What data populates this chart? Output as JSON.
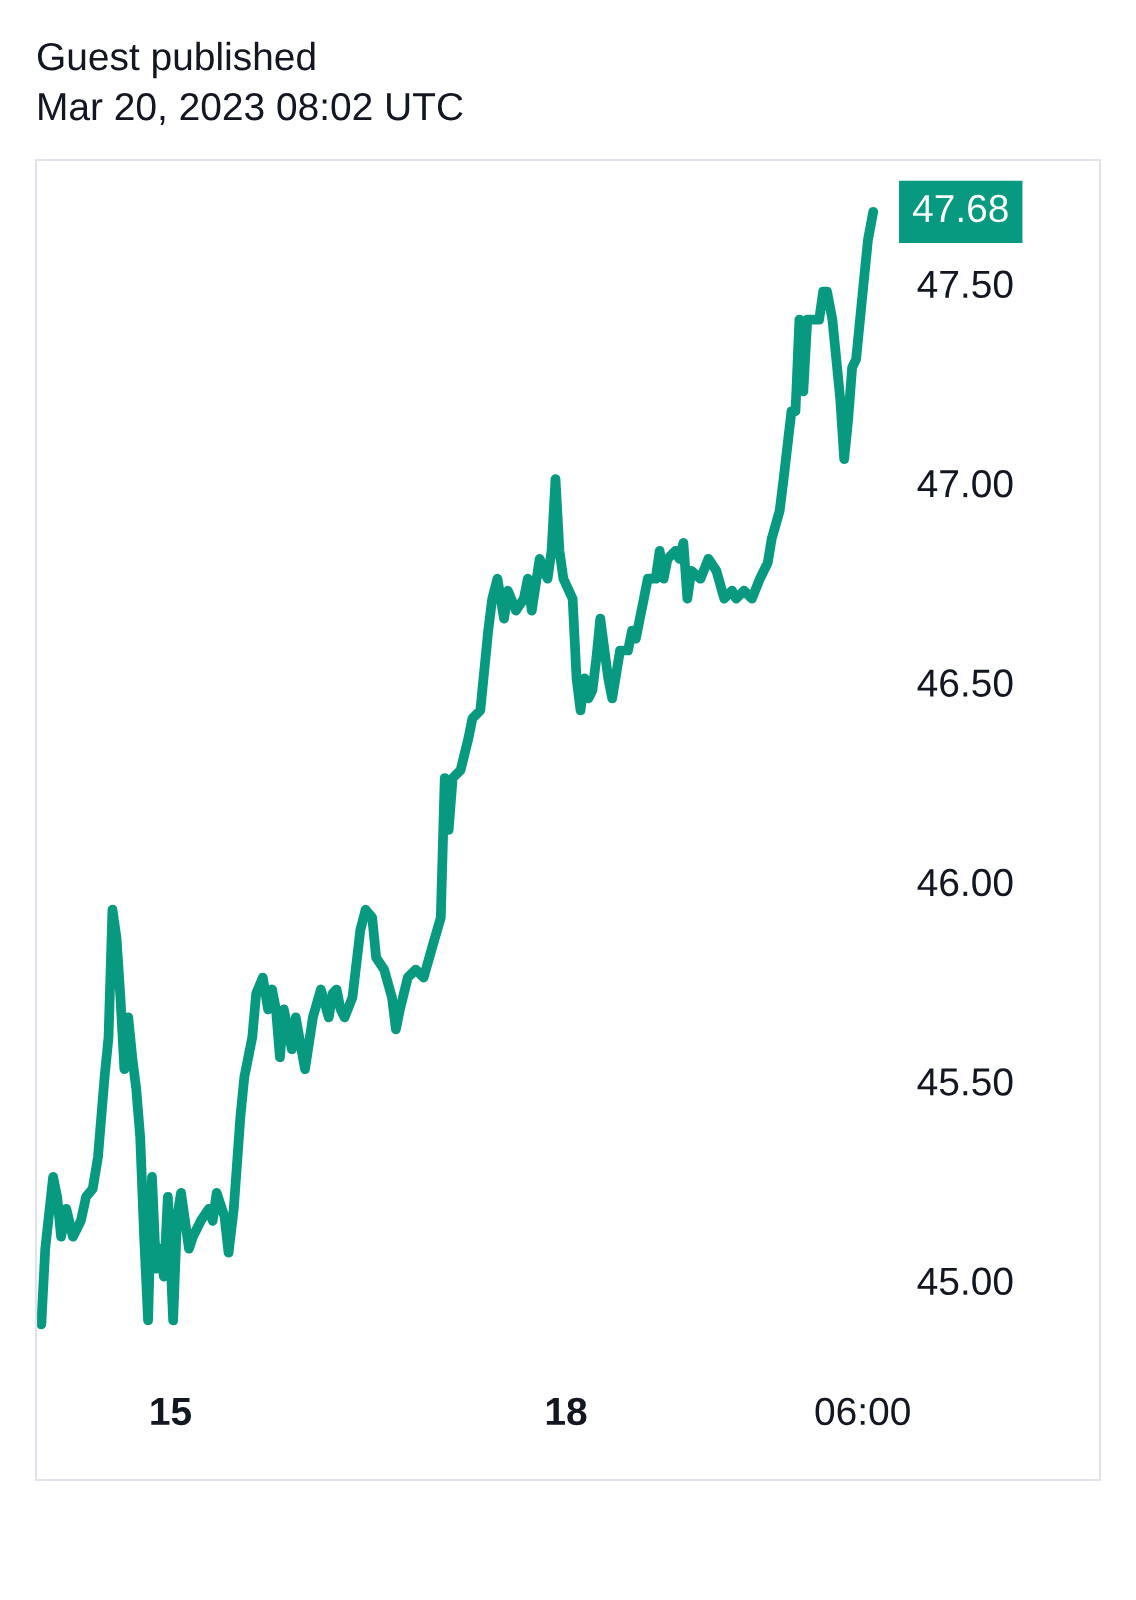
{
  "chart_data": {
    "type": "line",
    "title": "Guest published",
    "subtitle": "Mar 20, 2023 08:02 UTC",
    "x": [
      "2023-03-14T00:29",
      "2023-03-14T01:12",
      "2023-03-14T02:38",
      "2023-03-14T03:22",
      "2023-03-14T04:05",
      "2023-03-14T05:02",
      "2023-03-14T06:14",
      "2023-03-14T07:41",
      "2023-03-14T08:38",
      "2023-03-14T09:50",
      "2023-03-14T10:48",
      "2023-03-14T12:00",
      "2023-03-14T12:43",
      "2023-03-14T13:26",
      "2023-03-14T14:10",
      "2023-03-14T14:53",
      "2023-03-14T15:36",
      "2023-03-14T16:19",
      "2023-03-14T17:02",
      "2023-03-14T17:46",
      "2023-03-14T18:29",
      "2023-03-14T19:12",
      "2023-03-14T19:55",
      "2023-03-14T20:38",
      "2023-03-14T21:22",
      "2023-03-14T22:05",
      "2023-03-14T22:48",
      "2023-03-14T23:31",
      "2023-03-15T00:29",
      "2023-03-15T01:12",
      "2023-03-15T01:55",
      "2023-03-15T03:22",
      "2023-03-15T04:05",
      "2023-03-15T05:31",
      "2023-03-15T06:58",
      "2023-03-15T07:41",
      "2023-03-15T08:24",
      "2023-03-15T09:50",
      "2023-03-15T10:34",
      "2023-03-15T11:31",
      "2023-03-15T12:43",
      "2023-03-15T13:26",
      "2023-03-15T14:53",
      "2023-03-15T15:36",
      "2023-03-15T16:48",
      "2023-03-15T17:46",
      "2023-03-15T18:29",
      "2023-03-15T19:12",
      "2023-03-15T19:55",
      "2023-03-15T20:38",
      "2023-03-15T21:22",
      "2023-03-15T22:05",
      "2023-03-15T22:48",
      "2023-03-16T00:29",
      "2023-03-16T01:55",
      "2023-03-16T03:22",
      "2023-03-16T04:48",
      "2023-03-16T05:31",
      "2023-03-16T06:14",
      "2023-03-16T06:58",
      "2023-03-16T07:41",
      "2023-03-16T09:07",
      "2023-03-16T10:34",
      "2023-03-16T11:31",
      "2023-03-16T12:43",
      "2023-03-16T13:26",
      "2023-03-16T14:53",
      "2023-03-16T16:19",
      "2023-03-16T17:02",
      "2023-03-16T17:46",
      "2023-03-16T19:12",
      "2023-03-16T20:38",
      "2023-03-16T22:05",
      "2023-03-16T23:31",
      "2023-03-17T01:12",
      "2023-03-17T01:55",
      "2023-03-17T02:38",
      "2023-03-17T03:22",
      "2023-03-17T04:48",
      "2023-03-17T06:14",
      "2023-03-17T06:58",
      "2023-03-17T08:24",
      "2023-03-17T09:07",
      "2023-03-17T09:50",
      "2023-03-17T10:34",
      "2023-03-17T11:31",
      "2023-03-17T12:43",
      "2023-03-17T13:26",
      "2023-03-17T14:53",
      "2023-03-17T16:19",
      "2023-03-17T17:02",
      "2023-03-17T17:46",
      "2023-03-17T19:12",
      "2023-03-17T20:38",
      "2023-03-17T21:22",
      "2023-03-17T22:05",
      "2023-03-17T22:48",
      "2023-03-17T23:31",
      "2023-03-18T01:12",
      "2023-03-18T01:55",
      "2023-03-18T02:38",
      "2023-03-18T03:22",
      "2023-03-18T04:05",
      "2023-03-18T04:48",
      "2023-03-18T05:31",
      "2023-03-18T06:14",
      "2023-03-18T07:41",
      "2023-03-18T08:24",
      "2023-03-18T09:50",
      "2023-03-18T11:17",
      "2023-03-18T12:00",
      "2023-03-18T12:43",
      "2023-03-18T13:26",
      "2023-03-18T14:10",
      "2023-03-18T14:53",
      "2023-03-18T16:19",
      "2023-03-18T17:02",
      "2023-03-18T17:46",
      "2023-03-18T18:29",
      "2023-03-18T19:55",
      "2023-03-18T20:38",
      "2023-03-18T21:22",
      "2023-03-18T22:05",
      "2023-03-18T22:48",
      "2023-03-19T00:29",
      "2023-03-19T01:55",
      "2023-03-19T03:22",
      "2023-03-19T04:48",
      "2023-03-19T06:14",
      "2023-03-19T06:58",
      "2023-03-19T08:24",
      "2023-03-19T09:50",
      "2023-03-19T11:17",
      "2023-03-19T12:43",
      "2023-03-19T13:26",
      "2023-03-19T14:53",
      "2023-03-19T15:36",
      "2023-03-19T17:02",
      "2023-03-19T17:46",
      "2023-03-19T18:29",
      "2023-03-19T19:12",
      "2023-03-19T19:55",
      "2023-03-19T20:38",
      "2023-03-19T22:05",
      "2023-03-19T22:48",
      "2023-03-19T23:31",
      "2023-03-20T00:29",
      "2023-03-20T01:55",
      "2023-03-20T02:38",
      "2023-03-20T03:22",
      "2023-03-20T04:05",
      "2023-03-20T04:48",
      "2023-03-20T06:14",
      "2023-03-20T06:58",
      "2023-03-20T07:55"
    ],
    "series": [
      {
        "color": "#089981",
        "values": [
          44.89,
          45.08,
          45.26,
          45.21,
          45.11,
          45.18,
          45.11,
          45.15,
          45.21,
          45.23,
          45.31,
          45.51,
          45.61,
          45.93,
          45.86,
          45.71,
          45.53,
          45.66,
          45.56,
          45.48,
          45.36,
          45.11,
          44.9,
          45.26,
          45.03,
          45.08,
          45.01,
          45.21,
          44.9,
          45.16,
          45.22,
          45.08,
          45.11,
          45.15,
          45.18,
          45.15,
          45.22,
          45.16,
          45.07,
          45.18,
          45.41,
          45.51,
          45.61,
          45.72,
          45.76,
          45.68,
          45.73,
          45.68,
          45.56,
          45.68,
          45.63,
          45.58,
          45.66,
          45.53,
          45.66,
          45.73,
          45.66,
          45.72,
          45.73,
          45.68,
          45.66,
          45.71,
          45.88,
          45.93,
          45.91,
          45.81,
          45.78,
          45.71,
          45.63,
          45.68,
          45.76,
          45.78,
          45.76,
          45.83,
          45.91,
          46.26,
          46.13,
          46.26,
          46.28,
          46.36,
          46.41,
          46.43,
          46.53,
          46.63,
          46.71,
          46.76,
          46.66,
          46.73,
          46.68,
          46.71,
          46.76,
          46.68,
          46.81,
          46.76,
          46.83,
          47.01,
          46.83,
          46.76,
          46.71,
          46.51,
          46.43,
          46.51,
          46.46,
          46.48,
          46.56,
          46.66,
          46.51,
          46.46,
          46.58,
          46.58,
          46.63,
          46.61,
          46.66,
          46.71,
          46.76,
          46.76,
          46.83,
          46.76,
          46.81,
          46.83,
          46.81,
          46.85,
          46.71,
          46.78,
          46.76,
          46.81,
          46.78,
          46.71,
          46.73,
          46.71,
          46.73,
          46.71,
          46.76,
          46.8,
          46.86,
          46.93,
          47.01,
          47.18,
          47.18,
          47.41,
          47.23,
          47.41,
          47.41,
          47.41,
          47.48,
          47.48,
          47.41,
          47.21,
          47.06,
          47.16,
          47.29,
          47.31,
          47.51,
          47.61,
          47.68
        ]
      }
    ],
    "xlim": [
      "2023-03-13T23:31",
      "2023-03-22T01:12"
    ],
    "ylim": [
      44.5,
      47.81
    ],
    "xticks": [
      {
        "value": "2023-03-15",
        "label": "15"
      },
      {
        "value": "2023-03-18",
        "label": "18"
      },
      {
        "value": "2023-03-20T06:00",
        "label": "06:00"
      }
    ],
    "yticks": [
      {
        "value": 45,
        "label": "45.00"
      },
      {
        "value": 45.5,
        "label": "45.50"
      },
      {
        "value": 46,
        "label": "46.00"
      },
      {
        "value": 46.5,
        "label": "46.50"
      },
      {
        "value": 47,
        "label": "47.00"
      },
      {
        "value": 47.5,
        "label": "47.50"
      }
    ],
    "annotations": [
      {
        "text": "47.68",
        "x": "2023-03-20T07:55",
        "y": 47.68
      }
    ],
    "marker": "none",
    "line_style": "solid"
  }
}
